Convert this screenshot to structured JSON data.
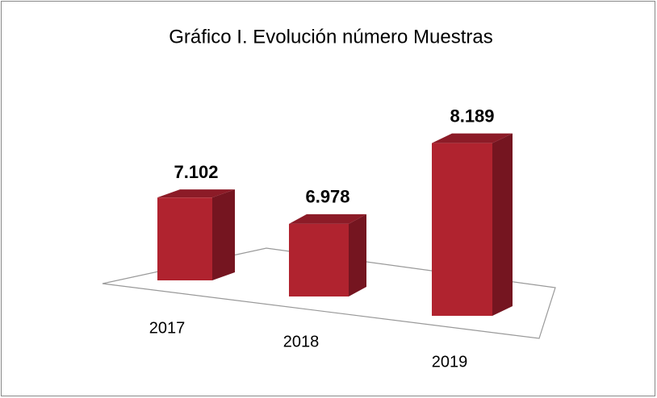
{
  "chart_data": {
    "type": "bar3d",
    "title": "Gráfico I. Evolución número Muestras",
    "categories": [
      "2017",
      "2018",
      "2019"
    ],
    "values": [
      7102,
      6978,
      8189
    ],
    "value_labels": [
      "7.102",
      "6.978",
      "8.189"
    ],
    "color": "#b0232f",
    "ylim": [
      6100,
      8400
    ]
  }
}
